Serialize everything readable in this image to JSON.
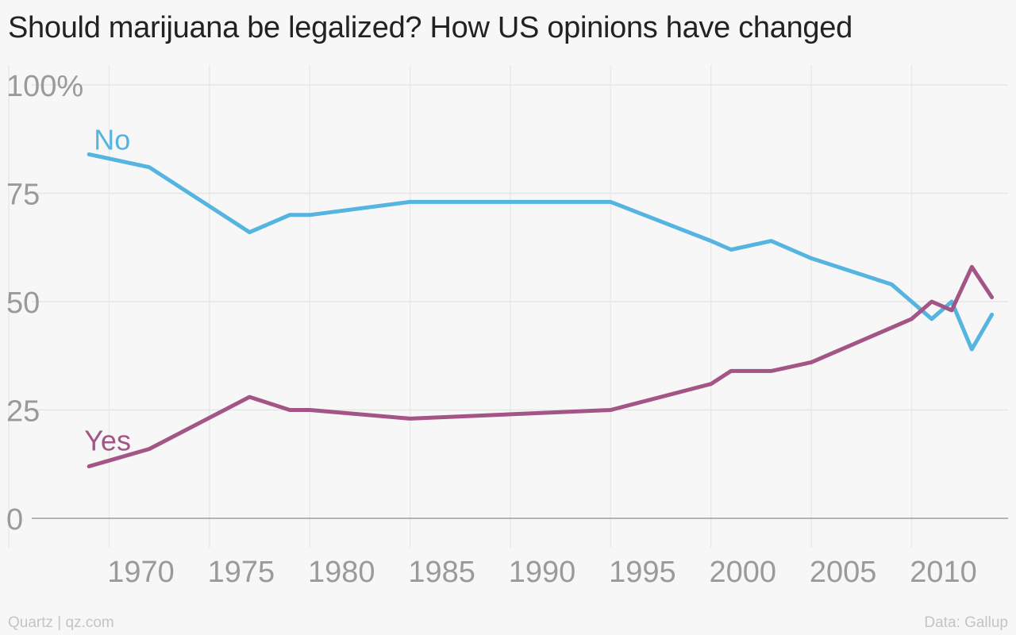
{
  "header": {
    "title": "Should marijuana be legalized? How US opinions have changed"
  },
  "footer": {
    "credit": "Quartz | qz.com",
    "source": "Data: Gallup"
  },
  "chart_data": {
    "type": "line",
    "title": "Should marijuana be legalized? How US opinions have changed",
    "xlabel": "",
    "ylabel": "",
    "xlim": [
      1965,
      2014
    ],
    "ylim": [
      0,
      100
    ],
    "xticks": [
      1970,
      1975,
      1980,
      1985,
      1990,
      1995,
      2000,
      2005,
      2010
    ],
    "xtick_labels": [
      "1970",
      "1975",
      "1980",
      "1985",
      "1990",
      "1995",
      "2000",
      "2005",
      "2010"
    ],
    "yticks": [
      0,
      25,
      50,
      75,
      100
    ],
    "ytick_labels": [
      "0",
      "25",
      "50",
      "75",
      "100%"
    ],
    "grid": true,
    "legend": "inline labels at start of each line",
    "series": [
      {
        "name": "No",
        "color": "#55b4e0",
        "x": [
          1969,
          1972,
          1977,
          1979,
          1980,
          1985,
          1995,
          2000,
          2001,
          2003,
          2005,
          2009,
          2010,
          2011,
          2012,
          2013,
          2014
        ],
        "values": [
          84,
          81,
          66,
          70,
          70,
          73,
          73,
          64,
          62,
          64,
          60,
          54,
          50,
          46,
          50,
          39,
          47
        ]
      },
      {
        "name": "Yes",
        "color": "#a35586",
        "x": [
          1969,
          1972,
          1977,
          1979,
          1980,
          1985,
          1995,
          2000,
          2001,
          2003,
          2005,
          2009,
          2010,
          2011,
          2012,
          2013,
          2014
        ],
        "values": [
          12,
          16,
          28,
          25,
          25,
          23,
          25,
          31,
          34,
          34,
          36,
          44,
          46,
          50,
          48,
          58,
          51
        ]
      }
    ]
  }
}
